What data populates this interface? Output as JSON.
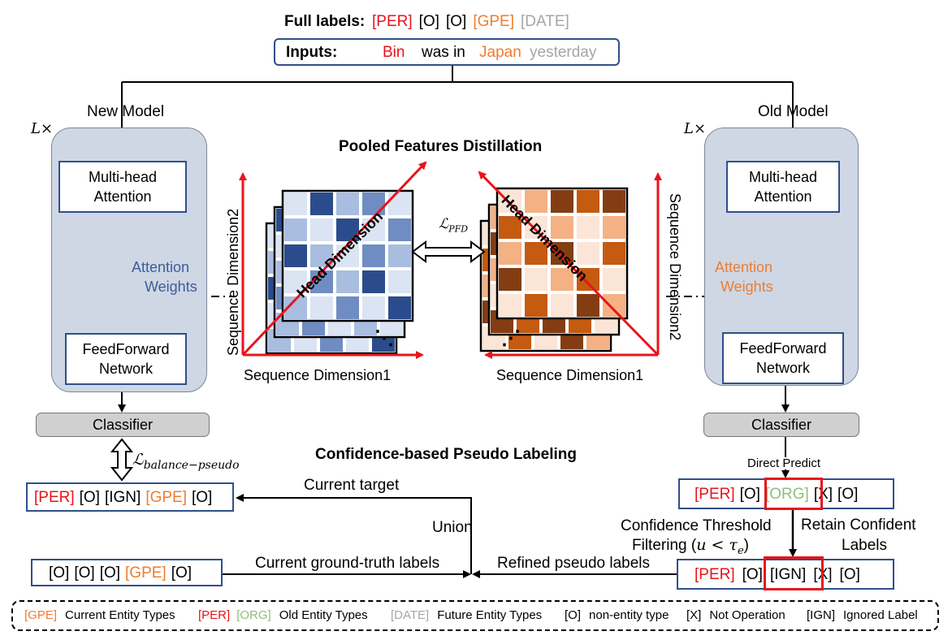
{
  "header": {
    "full_labels_title": "Full labels:",
    "full_labels": [
      {
        "text": "[PER]",
        "color": "#e8141c"
      },
      {
        "text": "[O]",
        "color": "#000000"
      },
      {
        "text": "[O]",
        "color": "#000000"
      },
      {
        "text": "[GPE]",
        "color": "#ed7d31"
      },
      {
        "text": "[DATE]",
        "color": "#a6a6a6"
      }
    ],
    "inputs_title": "Inputs:",
    "input_tokens": [
      {
        "text": "Bin",
        "color": "#e8141c"
      },
      {
        "text": "was in",
        "color": "#000000"
      },
      {
        "text": "Japan",
        "color": "#ed7d31"
      },
      {
        "text": "yesterday",
        "color": "#a6a6a6"
      }
    ]
  },
  "new_model": {
    "title": "New Model",
    "repeat": "L×",
    "attention_box": "Multi-head Attention",
    "attention_weights": "Attention Weights",
    "ffn_box": "FeedForward Network",
    "classifier": "Classifier"
  },
  "old_model": {
    "title": "Old Model",
    "repeat": "L×",
    "attention_box": "Multi-head Attention",
    "attention_weights": "Attention Weights",
    "ffn_box": "FeedForward Network",
    "classifier": "Classifier"
  },
  "pfd": {
    "title": "Pooled Features Distillation",
    "loss": "ℒ_PFD",
    "loss_main": "ℒ",
    "loss_sub": "PFD",
    "left_cube": {
      "x_axis": "Sequence Dimension1",
      "y_axis": "Sequence Dimension2",
      "diag": "Head Dimension",
      "ellipsis": "⋱"
    },
    "right_cube": {
      "x_axis": "Sequence Dimension1",
      "y_axis": "Sequence Dimension2",
      "diag": "Head Dimension",
      "ellipsis": "⋰"
    }
  },
  "cpl": {
    "title": "Confidence-based Pseudo Labeling",
    "balance_loss_main": "ℒ",
    "balance_loss_sub": "balance−pseudo",
    "direct_predict": "Direct Predict",
    "current_target": "Current target",
    "union": "Union",
    "confidence_line1": "Confidence Threshold",
    "confidence_line2": "Filtering (",
    "confidence_formula": "u < τ",
    "confidence_sub": "e",
    "confidence_close": ")",
    "retain_line1": "Retain Confident",
    "retain_line2": "Labels",
    "current_gt": "Current ground-truth labels",
    "refined": "Refined pseudo labels",
    "target_labels": [
      {
        "text": "[PER]",
        "color": "#e8141c"
      },
      {
        "text": "[O]",
        "color": "#000000"
      },
      {
        "text": "[IGN]",
        "color": "#000000"
      },
      {
        "text": "[GPE]",
        "color": "#ed7d31"
      },
      {
        "text": "[O]",
        "color": "#000000"
      }
    ],
    "gt_labels": [
      {
        "text": "[O]",
        "color": "#000000"
      },
      {
        "text": "[O]",
        "color": "#000000"
      },
      {
        "text": "[O]",
        "color": "#000000"
      },
      {
        "text": "[GPE]",
        "color": "#ed7d31"
      },
      {
        "text": "[O]",
        "color": "#000000"
      }
    ],
    "direct_labels": [
      {
        "text": "[PER]",
        "color": "#e8141c"
      },
      {
        "text": "[O]",
        "color": "#000000"
      },
      {
        "text": "[ORG]",
        "color": "#8cc07a"
      },
      {
        "text": "[X]",
        "color": "#000000"
      },
      {
        "text": "[O]",
        "color": "#000000"
      }
    ],
    "refined_labels": [
      {
        "text": "[PER]",
        "color": "#e8141c"
      },
      {
        "text": "[O]",
        "color": "#000000"
      },
      {
        "text": "[IGN]",
        "color": "#000000"
      },
      {
        "text": "[X]",
        "color": "#000000"
      },
      {
        "text": "[O]",
        "color": "#000000"
      }
    ]
  },
  "legend": [
    {
      "tags": [
        {
          "text": "[GPE]",
          "color": "#ed7d31"
        }
      ],
      "desc": "Current Entity Types"
    },
    {
      "tags": [
        {
          "text": "[PER]",
          "color": "#e8141c"
        },
        {
          "text": "[ORG]",
          "color": "#8cc07a"
        }
      ],
      "desc": "Old Entity Types"
    },
    {
      "tags": [
        {
          "text": "[DATE]",
          "color": "#a6a6a6"
        }
      ],
      "desc": "Future Entity Types"
    },
    {
      "tags": [
        {
          "text": "[O]",
          "color": "#000000"
        }
      ],
      "desc": "non-entity type"
    },
    {
      "tags": [
        {
          "text": "[X]",
          "color": "#000000"
        }
      ],
      "desc": "Not Operation"
    },
    {
      "tags": [
        {
          "text": "[IGN]",
          "color": "#000000"
        }
      ],
      "desc": "Ignored Label"
    }
  ],
  "colors": {
    "box_border": "#2f4f8a",
    "panel_fill": "#cfd7e4",
    "classifier_fill": "#d0d0d0",
    "highlight_red": "#e8141c",
    "blue_palette": [
      "#2b4c8c",
      "#6f8dc3",
      "#a8bde0",
      "#dbe4f2"
    ],
    "orange_palette": [
      "#843d12",
      "#c55a11",
      "#f4b183",
      "#fbe5d6"
    ]
  }
}
